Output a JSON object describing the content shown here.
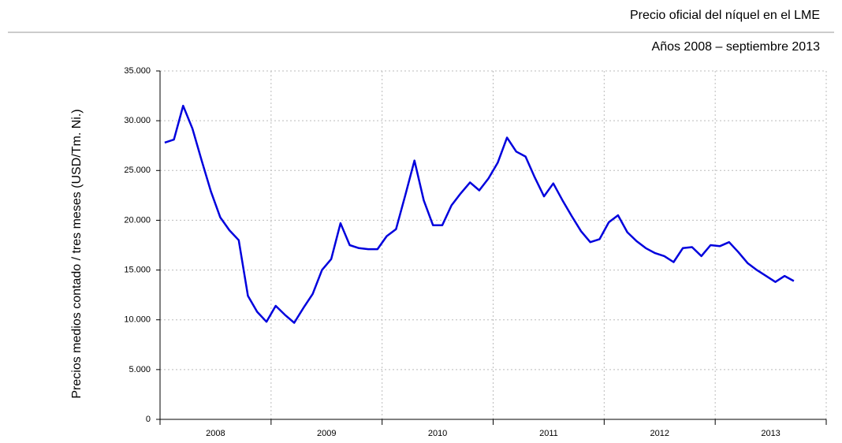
{
  "chart_data": {
    "type": "line",
    "title": "Precio oficial del níquel en el LME",
    "subtitle": "Años 2008 – septiembre 2013",
    "y_label": "Precios medios contado / tres meses (USD/Tm. Ni.)",
    "categories": [
      null,
      null,
      null,
      null,
      null,
      "2008",
      null,
      null,
      null,
      null,
      null,
      null,
      null,
      null,
      null,
      null,
      null,
      "2009",
      null,
      null,
      null,
      null,
      null,
      null,
      null,
      null,
      null,
      null,
      null,
      "2010",
      null,
      null,
      null,
      null,
      null,
      null,
      null,
      null,
      null,
      null,
      null,
      "2011",
      null,
      null,
      null,
      null,
      null,
      null,
      null,
      null,
      null,
      null,
      null,
      "2012",
      null,
      null,
      null,
      null,
      null,
      null,
      null,
      null,
      null,
      null,
      null,
      "2013",
      null,
      null,
      null
    ],
    "values": [
      27800,
      28100,
      31500,
      29200,
      26000,
      22900,
      20300,
      19000,
      18000,
      12400,
      10800,
      9800,
      11400,
      10500,
      9700,
      11200,
      12600,
      15000,
      16100,
      19700,
      17500,
      17200,
      17100,
      17100,
      18400,
      19100,
      22500,
      26000,
      22000,
      19500,
      19500,
      21500,
      22700,
      23800,
      23000,
      24200,
      25800,
      28300,
      26900,
      26400,
      24300,
      22400,
      23700,
      22000,
      20400,
      18900,
      17800,
      18100,
      19800,
      20500,
      18800,
      17900,
      17200,
      16700,
      16400,
      15800,
      17200,
      17300,
      16400,
      17500,
      17400,
      17800,
      16800,
      15700,
      15000,
      14400,
      13800,
      14400,
      13900
    ],
    "color": "#0000dd",
    "ylim": [
      0,
      35000
    ],
    "yticks": [
      0,
      {
        "value": 5000,
        "label": "5.000"
      },
      {
        "value": 10000,
        "label": "10.000"
      },
      {
        "value": 15000,
        "label": "15.000"
      },
      {
        "value": 20000,
        "label": "20.000"
      },
      {
        "value": 25000,
        "label": "25.000"
      },
      {
        "value": 30000,
        "label": "30.000"
      },
      {
        "value": 35000,
        "label": "35.000"
      }
    ],
    "grid": true
  }
}
